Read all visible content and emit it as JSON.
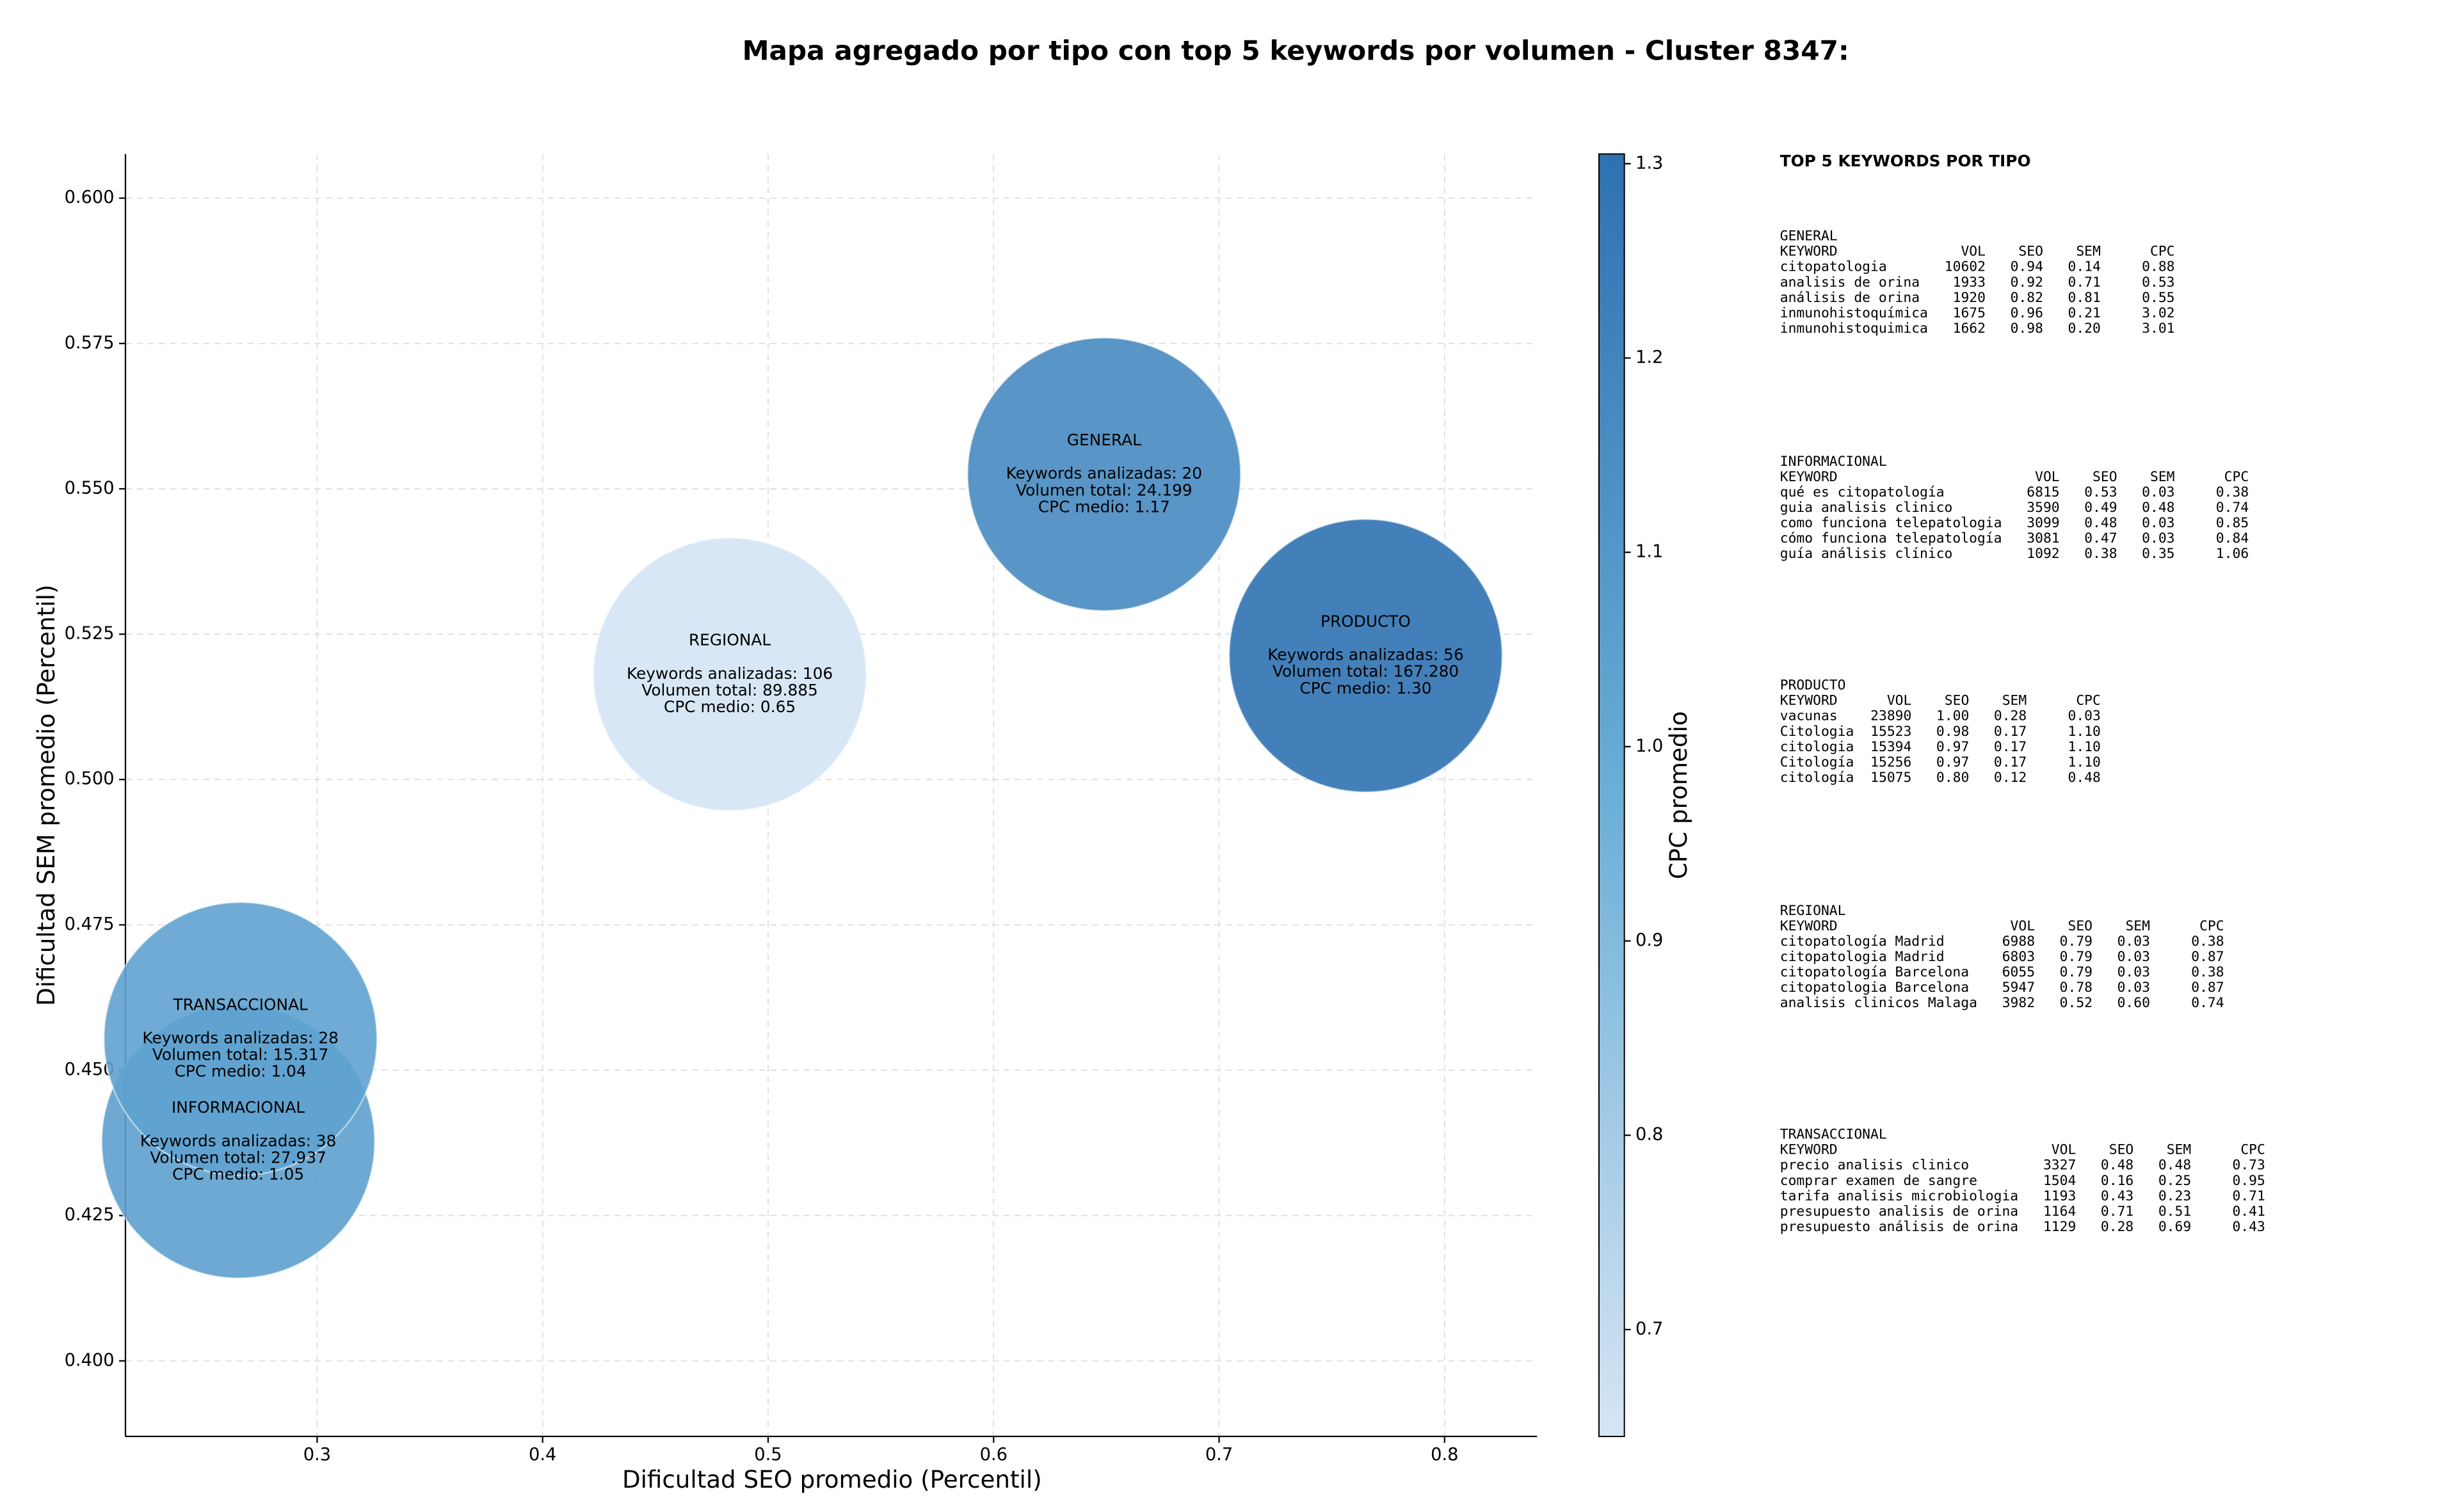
{
  "chart_data": {
    "type": "bubble",
    "title": "Mapa agregado por tipo con top 5 keywords por volumen - Cluster 8347:",
    "xlabel": "Dificultad SEO promedio (Percentil)",
    "ylabel": "Dificultad SEM promedio (Percentil)",
    "points": [
      {
        "name": "GENERAL",
        "x": 0.649,
        "y": 0.5525,
        "cpc": 1.17,
        "lines": [
          "Keywords analizadas: 20",
          "Volumen total: 24.199",
          "CPC medio: 1.17"
        ]
      },
      {
        "name": "INFORMACIONAL",
        "x": 0.265,
        "y": 0.4377,
        "cpc": 1.05,
        "lines": [
          "Keywords analizadas: 38",
          "Volumen total: 27.937",
          "CPC medio: 1.05"
        ]
      },
      {
        "name": "PRODUCTO",
        "x": 0.765,
        "y": 0.5213,
        "cpc": 1.3,
        "lines": [
          "Keywords analizadas: 56",
          "Volumen total: 167.280",
          "CPC medio: 1.30"
        ]
      },
      {
        "name": "REGIONAL",
        "x": 0.483,
        "y": 0.5181,
        "cpc": 0.65,
        "lines": [
          "Keywords analizadas: 106",
          "Volumen total: 89.885",
          "CPC medio: 0.65"
        ]
      },
      {
        "name": "TRANSACCIONAL",
        "x": 0.266,
        "y": 0.4554,
        "cpc": 1.04,
        "lines": [
          "Keywords analizadas: 28",
          "Volumen total: 15.317",
          "CPC medio: 1.04"
        ]
      }
    ],
    "xlim": [
      0.215,
      0.841
    ],
    "ylim": [
      0.387,
      0.6076
    ],
    "xticks": [
      0.3,
      0.4,
      0.5,
      0.6,
      0.7,
      0.8
    ],
    "yticks": [
      {
        "value": 0.4,
        "label": "0.400"
      },
      {
        "value": 0.425,
        "label": "0.425"
      },
      {
        "value": 0.45,
        "label": "0.450"
      },
      {
        "value": 0.475,
        "label": "0.475"
      },
      {
        "value": 0.5,
        "label": "0.500"
      },
      {
        "value": 0.525,
        "label": "0.525"
      },
      {
        "value": 0.55,
        "label": "0.550"
      },
      {
        "value": 0.575,
        "label": "0.575"
      },
      {
        "value": 0.6,
        "label": "0.600"
      }
    ],
    "grid": true,
    "colorbar": {
      "label": "CPC promedio",
      "lim": [
        0.645,
        1.305
      ],
      "ticks": [
        0.7,
        0.8,
        0.9,
        {
          "value": 1.0,
          "label": "1.0"
        },
        1.1,
        1.2,
        1.3
      ],
      "colors": [
        "#d6e5f4",
        "#6baed6",
        "#2e71b0"
      ]
    }
  },
  "panel": {
    "title": "TOP 5 KEYWORDS POR TIPO",
    "groups": [
      {
        "name": "GENERAL",
        "columns": [
          "KEYWORD",
          "VOL",
          "SEO",
          "SEM",
          "CPC"
        ],
        "rows": [
          [
            "citopatologia",
            "10602",
            "0.94",
            "0.14",
            "0.88"
          ],
          [
            "analisis de orina",
            "1933",
            "0.92",
            "0.71",
            "0.53"
          ],
          [
            "análisis de orina",
            "1920",
            "0.82",
            "0.81",
            "0.55"
          ],
          [
            "inmunohistoquímica",
            "1675",
            "0.96",
            "0.21",
            "3.02"
          ],
          [
            "inmunohistoquimica",
            "1662",
            "0.98",
            "0.20",
            "3.01"
          ]
        ]
      },
      {
        "name": "INFORMACIONAL",
        "columns": [
          "KEYWORD",
          "VOL",
          "SEO",
          "SEM",
          "CPC"
        ],
        "rows": [
          [
            "qué es citopatología",
            "6815",
            "0.53",
            "0.03",
            "0.38"
          ],
          [
            "guia analisis clinico",
            "3590",
            "0.49",
            "0.48",
            "0.74"
          ],
          [
            "como funciona telepatologia",
            "3099",
            "0.48",
            "0.03",
            "0.85"
          ],
          [
            "cómo funciona telepatología",
            "3081",
            "0.47",
            "0.03",
            "0.84"
          ],
          [
            "guía análisis clínico",
            "1092",
            "0.38",
            "0.35",
            "1.06"
          ]
        ]
      },
      {
        "name": "PRODUCTO",
        "columns": [
          "KEYWORD",
          "VOL",
          "SEO",
          "SEM",
          "CPC"
        ],
        "rows": [
          [
            "vacunas",
            "23890",
            "1.00",
            "0.28",
            "0.03"
          ],
          [
            "Citologia",
            "15523",
            "0.98",
            "0.17",
            "1.10"
          ],
          [
            "citologia",
            "15394",
            "0.97",
            "0.17",
            "1.10"
          ],
          [
            "Citología",
            "15256",
            "0.97",
            "0.17",
            "1.10"
          ],
          [
            "citología",
            "15075",
            "0.80",
            "0.12",
            "0.48"
          ]
        ]
      },
      {
        "name": "REGIONAL",
        "columns": [
          "KEYWORD",
          "VOL",
          "SEO",
          "SEM",
          "CPC"
        ],
        "rows": [
          [
            "citopatología Madrid",
            "6988",
            "0.79",
            "0.03",
            "0.38"
          ],
          [
            "citopatologia Madrid",
            "6803",
            "0.79",
            "0.03",
            "0.87"
          ],
          [
            "citopatología Barcelona",
            "6055",
            "0.79",
            "0.03",
            "0.38"
          ],
          [
            "citopatologia Barcelona",
            "5947",
            "0.78",
            "0.03",
            "0.87"
          ],
          [
            "analisis clinicos Malaga",
            "3982",
            "0.52",
            "0.60",
            "0.74"
          ]
        ]
      },
      {
        "name": "TRANSACCIONAL",
        "columns": [
          "KEYWORD",
          "VOL",
          "SEO",
          "SEM",
          "CPC"
        ],
        "rows": [
          [
            "precio analisis clinico",
            "3327",
            "0.48",
            "0.48",
            "0.73"
          ],
          [
            "comprar examen de sangre",
            "1504",
            "0.16",
            "0.25",
            "0.95"
          ],
          [
            "tarifa analisis microbiologia",
            "1193",
            "0.43",
            "0.23",
            "0.71"
          ],
          [
            "presupuesto analisis de orina",
            "1164",
            "0.71",
            "0.51",
            "0.41"
          ],
          [
            "presupuesto análisis de orina",
            "1129",
            "0.28",
            "0.69",
            "0.43"
          ]
        ]
      }
    ]
  }
}
